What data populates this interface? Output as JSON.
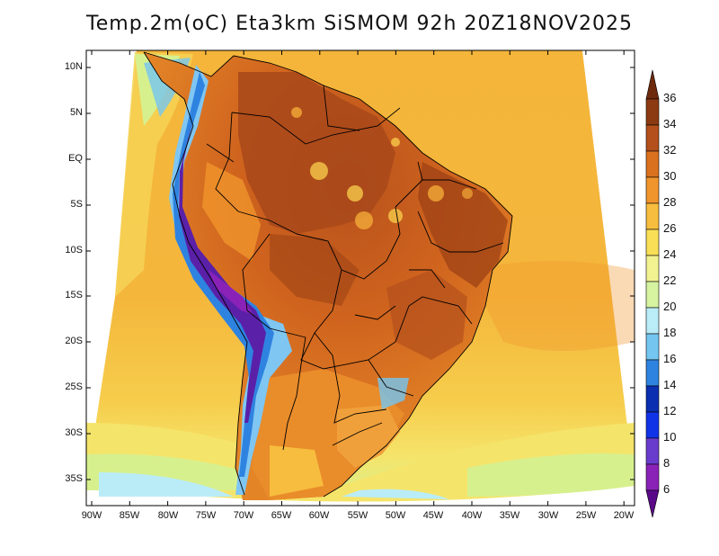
{
  "title": "Temp.2m(oC) Eta3km SiSMOM 92h 20Z18NOV2025",
  "lat_labels": [
    "10N",
    "5N",
    "EQ",
    "5S",
    "10S",
    "15S",
    "20S",
    "25S",
    "30S",
    "35S"
  ],
  "lon_labels": [
    "90W",
    "85W",
    "80W",
    "75W",
    "70W",
    "65W",
    "60W",
    "55W",
    "50W",
    "45W",
    "40W",
    "35W",
    "30W",
    "25W",
    "20W"
  ],
  "colorbar": {
    "labels": [
      "36",
      "34",
      "32",
      "30",
      "28",
      "26",
      "24",
      "22",
      "20",
      "18",
      "16",
      "14",
      "12",
      "10",
      "8",
      "6"
    ],
    "colors": [
      "#6e2a0c",
      "#8c3a12",
      "#b4501c",
      "#d9711f",
      "#f0952c",
      "#f7bd3e",
      "#f8df56",
      "#f3f291",
      "#d6f3a0",
      "#b9ecf7",
      "#74c6f1",
      "#2f83e0",
      "#0a2fb0",
      "#1133e8",
      "#6a3ccd",
      "#8a22b8",
      "#5a0a88"
    ]
  },
  "map_colors": {
    "ocean_warm": "#f4b53a",
    "ocean_mid": "#f6cd4c",
    "ocean_cool": "#f5ea6a",
    "ocean_cold": "#d7f08e",
    "land_hot": "#d4681e",
    "land_very_hot": "#9e4216",
    "land_mild": "#e98c2a",
    "andes_cold": "#4a7de0",
    "andes_very_cold": "#5a20a8",
    "andes_cool": "#7fc6f2"
  }
}
